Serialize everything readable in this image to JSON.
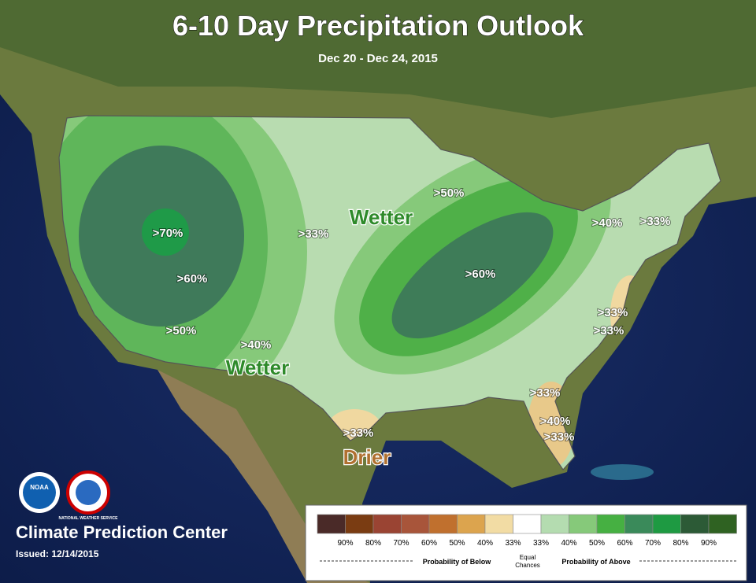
{
  "header": {
    "title": "6-10 Day Precipitation Outlook",
    "subtitle": "Dec 20 - Dec 24, 2015"
  },
  "map_labels": [
    ">70%",
    ">60%",
    ">60%",
    ">50%",
    ">50%",
    ">40%",
    ">40%",
    ">33%",
    ">33%",
    ">33%",
    ">33%",
    ">33%",
    ">33%",
    ">40%",
    ">33%"
  ],
  "region_labels": [
    "Wetter",
    "Wetter",
    "Drier"
  ],
  "logos": [
    "NOAA",
    "NATIONAL WEATHER SERVICE"
  ],
  "footer": {
    "center": "Climate Prediction Center",
    "issued": "Issued: 12/14/2015"
  },
  "legend": {
    "colors": [
      "#4a2a28",
      "#7a3c12",
      "#9a4433",
      "#a8553a",
      "#c0702e",
      "#dca44e",
      "#f2dca4",
      "#ffffff",
      "#b4dcb0",
      "#86c97a",
      "#46b042",
      "#3a8a5a",
      "#1e9a42",
      "#2c5a36",
      "#2f6222"
    ],
    "labels": [
      "90%",
      "80%",
      "70%",
      "60%",
      "50%",
      "40%",
      "33%",
      "33%",
      "40%",
      "50%",
      "60%",
      "70%",
      "80%",
      "90%"
    ],
    "below": "Probability of Below",
    "equal": [
      "Equal",
      "Chances"
    ],
    "above": "Probability of Above"
  }
}
